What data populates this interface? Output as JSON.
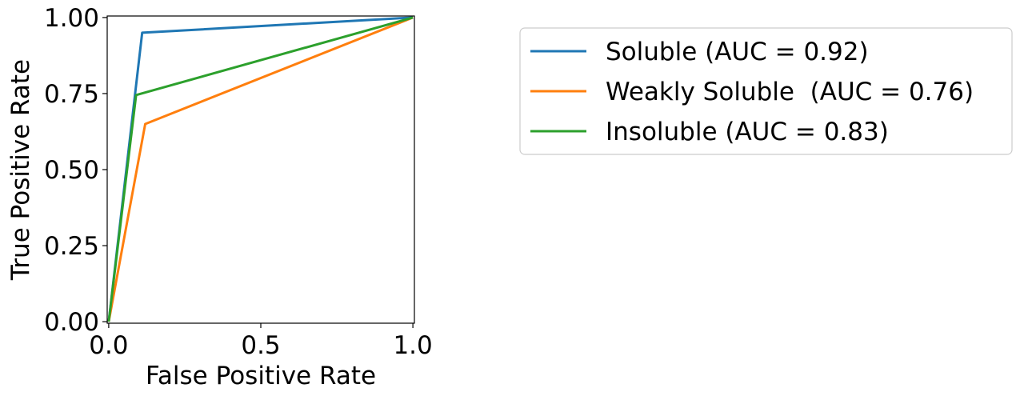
{
  "chart_data": {
    "type": "line",
    "xlabel": "False Positive Rate",
    "ylabel": "True Positive Rate",
    "xlim": [
      0.0,
      1.0
    ],
    "ylim": [
      0.0,
      1.0
    ],
    "grid": false,
    "legend_position": "outside-right-top",
    "x_ticks": [
      {
        "value": 0.0,
        "label": "0.0"
      },
      {
        "value": 0.5,
        "label": "0.5"
      },
      {
        "value": 1.0,
        "label": "1.0"
      }
    ],
    "y_ticks": [
      {
        "value": 0.0,
        "label": "0.00"
      },
      {
        "value": 0.25,
        "label": "0.25"
      },
      {
        "value": 0.5,
        "label": "0.50"
      },
      {
        "value": 0.75,
        "label": "0.75"
      },
      {
        "value": 1.0,
        "label": "1.00"
      }
    ],
    "series": [
      {
        "name": "Soluble (AUC = 0.92)",
        "color": "#1f77b4",
        "x": [
          0.0,
          0.11,
          1.0
        ],
        "y": [
          0.0,
          0.95,
          1.0
        ]
      },
      {
        "name": "Weakly Soluble  (AUC = 0.76)",
        "color": "#ff7f0e",
        "x": [
          0.0,
          0.12,
          1.0
        ],
        "y": [
          0.0,
          0.65,
          1.0
        ]
      },
      {
        "name": "Insoluble (AUC = 0.83)",
        "color": "#2ca02c",
        "x": [
          0.0,
          0.09,
          1.0
        ],
        "y": [
          0.0,
          0.745,
          1.0
        ]
      }
    ]
  }
}
